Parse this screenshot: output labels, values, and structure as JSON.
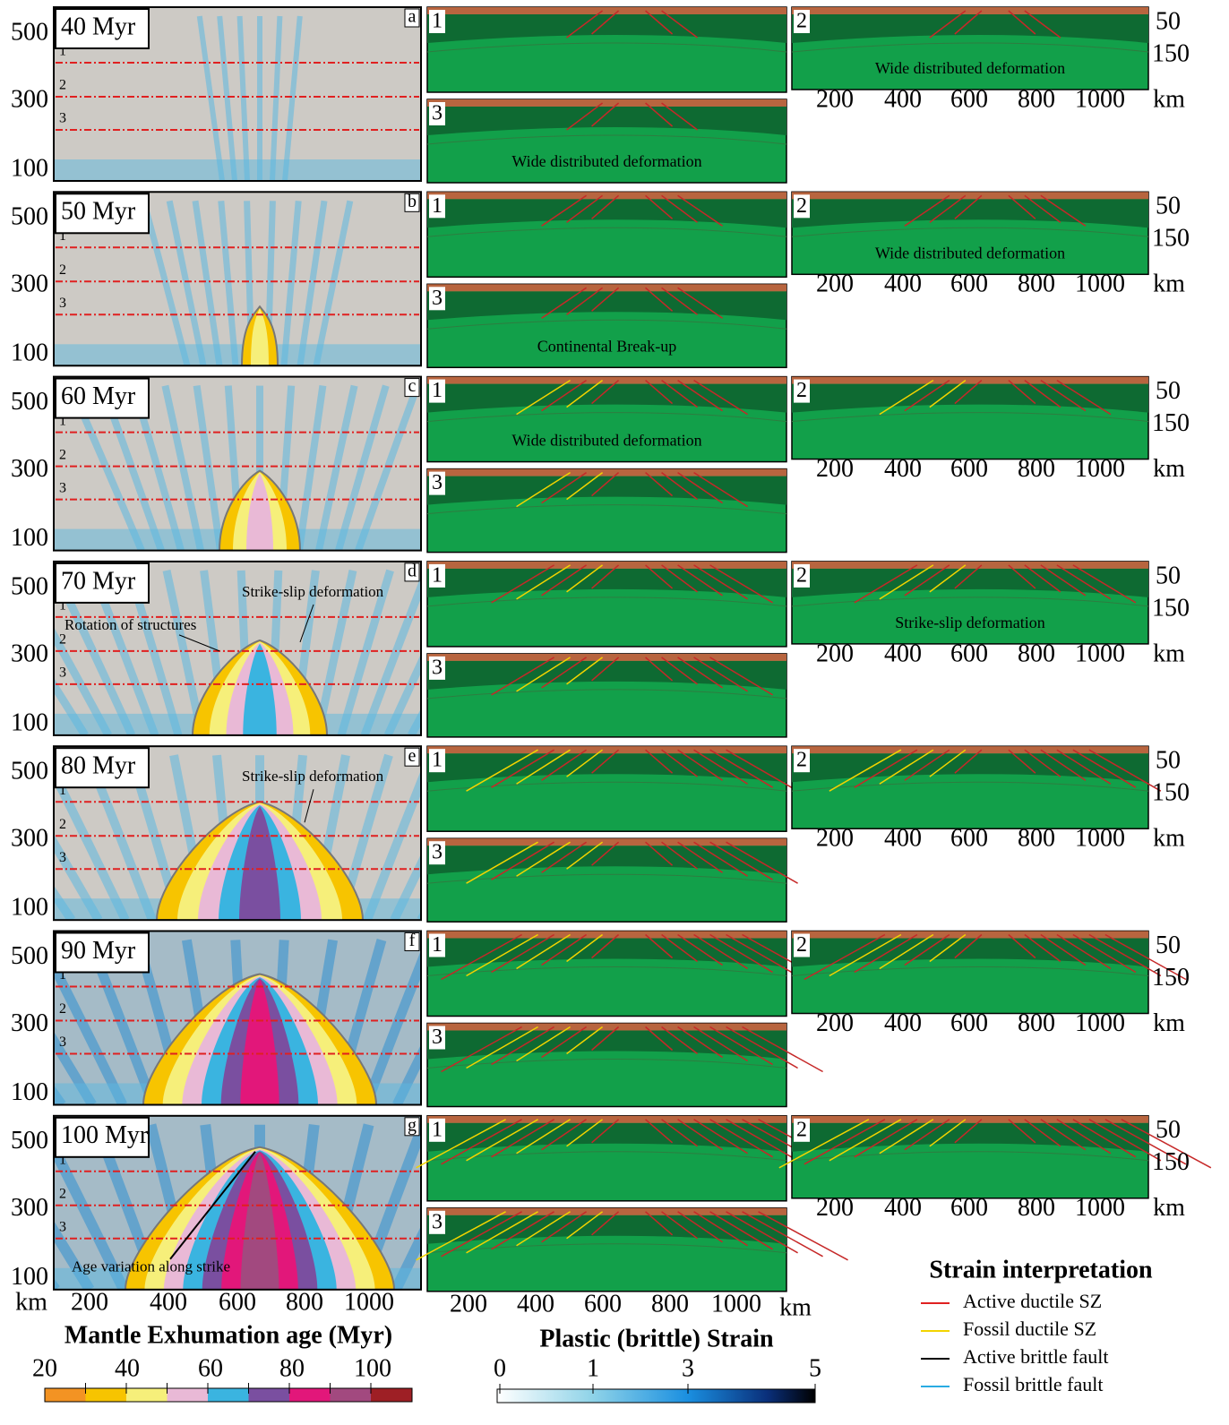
{
  "rows": [
    {
      "time": "40 Myr",
      "letter": "a",
      "map_notes": [],
      "s1_notes": [],
      "s2_notes": [
        "Wide distributed deformation"
      ],
      "s3_notes": [
        "Wide distributed deformation"
      ]
    },
    {
      "time": "50 Myr",
      "letter": "b",
      "map_notes": [],
      "s1_notes": [],
      "s2_notes": [
        "Wide distributed deformation"
      ],
      "s3_notes": [
        "Continental Break-up"
      ]
    },
    {
      "time": "60 Myr",
      "letter": "c",
      "map_notes": [],
      "s1_notes": [
        "Wide distributed deformation"
      ],
      "s2_notes": [],
      "s3_notes": []
    },
    {
      "time": "70 Myr",
      "letter": "d",
      "map_notes": [
        "Strike-slip deformation",
        "Rotation of structures"
      ],
      "s1_notes": [],
      "s2_notes": [
        "Strike-slip deformation"
      ],
      "s3_notes": []
    },
    {
      "time": "80 Myr",
      "letter": "e",
      "map_notes": [
        "Strike-slip deformation"
      ],
      "s1_notes": [],
      "s2_notes": [],
      "s3_notes": []
    },
    {
      "time": "90 Myr",
      "letter": "f",
      "map_notes": [],
      "s1_notes": [],
      "s2_notes": [],
      "s3_notes": []
    },
    {
      "time": "100 Myr",
      "letter": "g",
      "map_notes": [
        "Age variation along strike"
      ],
      "s1_notes": [],
      "s2_notes": [],
      "s3_notes": []
    }
  ],
  "map_axis": {
    "yticks": [
      "500",
      "300",
      "100"
    ],
    "profile_lines": [
      "1",
      "2",
      "3"
    ],
    "xticks": [
      "km",
      "200",
      "400",
      "600",
      "800",
      "1000"
    ]
  },
  "section_labels": [
    "1",
    "2",
    "3"
  ],
  "section_axis": {
    "depth_ticks": [
      "50",
      "150"
    ],
    "xticks": [
      "200",
      "400",
      "600",
      "800",
      "1000"
    ],
    "unit": "km"
  },
  "age_colorbar": {
    "title": "Mantle Exhumation age (Myr)",
    "ticks": [
      "20",
      "40",
      "60",
      "80",
      "100"
    ],
    "colors": [
      "#f39323",
      "#f7c400",
      "#f6ef7a",
      "#e9b9d6",
      "#3ab4e0",
      "#7a4fa0",
      "#e2177a",
      "#a2497f",
      "#9e1f25"
    ]
  },
  "strain_colorbar": {
    "title": "Plastic (brittle) Strain",
    "ticks": [
      "0",
      "1",
      "3",
      "5"
    ]
  },
  "legend": {
    "title": "Strain interpretation",
    "items": [
      {
        "label": "Active ductile SZ",
        "color": "#e02020"
      },
      {
        "label": "Fossil ductile SZ",
        "color": "#f2d400"
      },
      {
        "label": "Active brittle fault",
        "color": "#000000"
      },
      {
        "label": "Fossil brittle fault",
        "color": "#29abe2"
      }
    ]
  }
}
